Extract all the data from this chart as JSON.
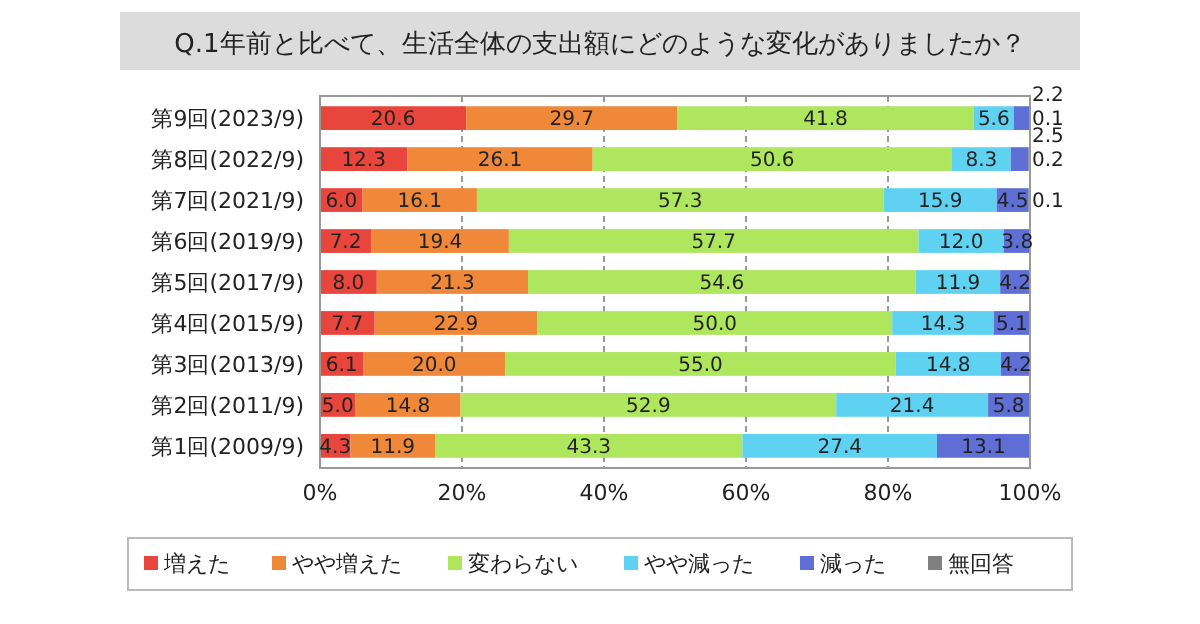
{
  "chart_data": {
    "type": "bar",
    "orientation": "horizontal",
    "stacked": true,
    "title": "Q.1年前と比べて、生活全体の支出額にどのような変化がありましたか？",
    "categories": [
      "第9回(2023/9)",
      "第8回(2022/9)",
      "第7回(2021/9)",
      "第6回(2019/9)",
      "第5回(2017/9)",
      "第4回(2015/9)",
      "第3回(2013/9)",
      "第2回(2011/9)",
      "第1回(2009/9)"
    ],
    "series": [
      {
        "name": "増えた",
        "color": "#e8453c",
        "values": [
          20.6,
          12.3,
          6.0,
          7.2,
          8.0,
          7.7,
          6.1,
          5.0,
          4.3
        ],
        "value_labels": [
          "20.6",
          "12.3",
          "6.0",
          "7.2",
          "8.0",
          "7.7",
          "6.1",
          "5.0",
          "4.3"
        ]
      },
      {
        "name": "やや増えた",
        "color": "#f0883a",
        "values": [
          29.7,
          26.1,
          16.1,
          19.4,
          21.3,
          22.9,
          20.0,
          14.8,
          11.9
        ],
        "value_labels": [
          "29.7",
          "26.1",
          "16.1",
          "19.4",
          "21.3",
          "22.9",
          "20.0",
          "14.8",
          "11.9"
        ]
      },
      {
        "name": "変わらない",
        "color": "#aee65e",
        "values": [
          41.8,
          50.6,
          57.3,
          57.7,
          54.6,
          50.0,
          55.0,
          52.9,
          43.3
        ],
        "value_labels": [
          "41.8",
          "50.6",
          "57.3",
          "57.7",
          "54.6",
          "50.0",
          "55.0",
          "52.9",
          "43.3"
        ]
      },
      {
        "name": "やや減った",
        "color": "#5fd2f2",
        "values": [
          5.6,
          8.3,
          15.9,
          12.0,
          11.9,
          14.3,
          14.8,
          21.4,
          27.4
        ],
        "value_labels": [
          "5.6",
          "8.3",
          "15.9",
          "12.0",
          "11.9",
          "14.3",
          "14.8",
          "21.4",
          "27.4"
        ]
      },
      {
        "name": "減った",
        "color": "#5f6fd6",
        "values": [
          2.2,
          2.5,
          4.5,
          3.8,
          4.2,
          5.1,
          4.2,
          5.8,
          13.1
        ],
        "value_labels": [
          "2.2",
          "2.5",
          "4.5",
          "3.8",
          "4.2",
          "5.1",
          "4.2",
          "5.8",
          "13.1"
        ]
      },
      {
        "name": "無回答",
        "color": "#808080",
        "values": [
          0.1,
          0.2,
          0.1,
          null,
          null,
          null,
          null,
          null,
          null
        ],
        "value_labels": [
          "0.1",
          "0.2",
          "0.1",
          null,
          null,
          null,
          null,
          null,
          null
        ]
      }
    ],
    "xlim": [
      0,
      100
    ],
    "xticks": [
      {
        "value": 0,
        "label": "0%"
      },
      {
        "value": 20,
        "label": "20%"
      },
      {
        "value": 40,
        "label": "40%"
      },
      {
        "value": 60,
        "label": "60%"
      },
      {
        "value": 80,
        "label": "80%"
      },
      {
        "value": 100,
        "label": "100%"
      }
    ],
    "grid": "x",
    "legend": "bottom"
  }
}
